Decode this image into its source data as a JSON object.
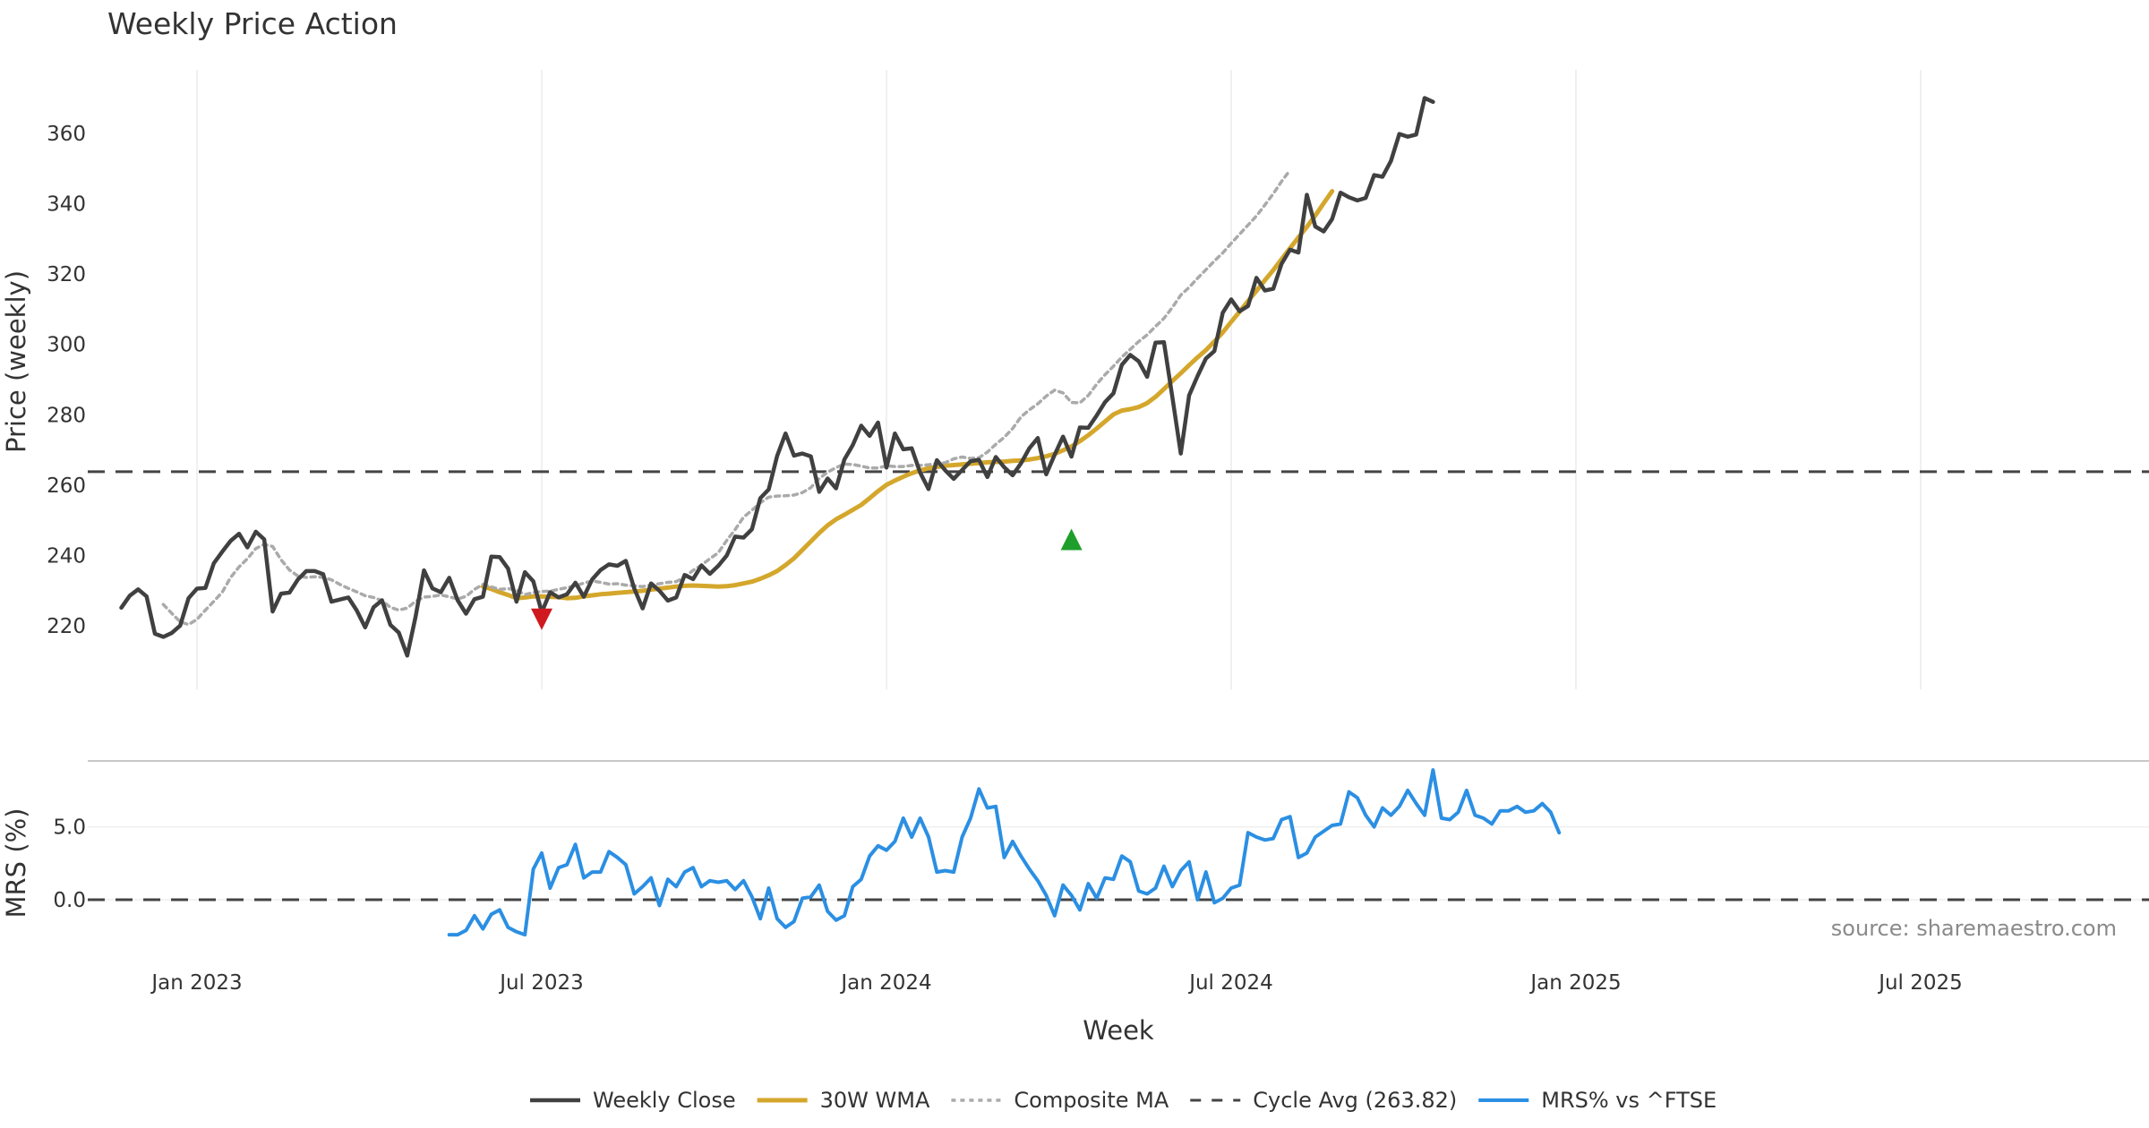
{
  "chart_data": {
    "type": "line",
    "title": "Weekly Price Action",
    "source": "source: sharemaestro.com",
    "x_tick_labels": [
      "Jan 2023",
      "Jul 2023",
      "Jan 2024",
      "Jul 2024",
      "Jan 2025",
      "Jul 2025"
    ],
    "x_tick_weeks": [
      9,
      50,
      91,
      132,
      173,
      214
    ],
    "price_panel": {
      "ylabel": "Price (weekly)",
      "ylim": [
        202,
        378
      ],
      "yticks": [
        220,
        240,
        260,
        280,
        300,
        320,
        340,
        360
      ],
      "cycle_avg": 263.82
    },
    "mrs_panel": {
      "ylabel": "MRS (%)",
      "ylim": [
        -4.3,
        9.4
      ],
      "yticks": [
        0.0,
        5.0
      ],
      "ytick_labels": [
        "0.0",
        "5.0"
      ]
    },
    "series": [
      {
        "name": "Weekly Close",
        "color": "#404040",
        "panel": "price",
        "start_week": 0,
        "values": [
          225.2,
          228.6,
          230.4,
          228.4,
          217.8,
          216.9,
          218.0,
          220.1,
          227.9,
          230.6,
          230.8,
          237.8,
          241.1,
          244.2,
          246.2,
          242.3,
          246.8,
          244.6,
          224.1,
          229.2,
          229.5,
          233.2,
          235.6,
          235.6,
          234.7,
          226.9,
          227.5,
          228.1,
          224.4,
          219.6,
          225.3,
          227.3,
          220.3,
          218.1,
          211.6,
          222.6,
          235.8,
          230.7,
          229.6,
          233.7,
          227.3,
          223.5,
          227.6,
          228.3,
          239.7,
          239.6,
          236.3,
          226.9,
          235.3,
          232.7,
          223.9,
          229.6,
          228.1,
          229.0,
          232.3,
          228.3,
          233.2,
          235.9,
          237.5,
          237.1,
          238.5,
          230.7,
          225.0,
          232.1,
          230.0,
          227.2,
          228.1,
          234.5,
          233.3,
          237.2,
          234.8,
          237.1,
          240.0,
          245.4,
          245.1,
          247.5,
          256.3,
          258.8,
          268.3,
          274.7,
          268.4,
          269.0,
          268.2,
          258.1,
          261.9,
          259.1,
          267.3,
          271.4,
          276.9,
          274.0,
          277.8,
          265.0,
          274.7,
          270.2,
          270.5,
          263.6,
          258.9,
          267.1,
          264.2,
          261.8,
          264.3,
          266.8,
          267.2,
          262.3,
          268.0,
          265.1,
          262.8,
          266.2,
          270.5,
          273.4,
          263.1,
          268.6,
          273.8,
          268.1,
          276.4,
          276.3,
          279.8,
          283.6,
          286.1,
          294.2,
          297.0,
          295.2,
          290.8,
          300.5,
          300.6,
          285.0,
          269.0,
          285.5,
          291.0,
          296.0,
          298.1,
          309.0,
          312.8,
          309.4,
          310.9,
          318.9,
          315.3,
          315.8,
          322.9,
          326.9,
          326.1,
          342.5,
          333.5,
          332.1,
          335.6,
          343.1,
          341.8,
          340.9,
          341.6,
          348.1,
          347.6,
          352.1,
          359.8,
          359.0,
          359.6,
          370.0,
          368.9
        ]
      },
      {
        "name": "30W WMA",
        "color": "#D4A72C",
        "panel": "price",
        "start_week": 43,
        "values": [
          231.2,
          230.5,
          229.6,
          228.8,
          227.9,
          228.1,
          228.4,
          228.4,
          228.3,
          228.2,
          227.9,
          228.0,
          228.4,
          228.7,
          229.0,
          229.2,
          229.4,
          229.6,
          229.8,
          230.0,
          230.3,
          230.6,
          230.9,
          231.2,
          231.4,
          231.5,
          231.4,
          231.3,
          231.2,
          231.3,
          231.6,
          232.1,
          232.6,
          233.4,
          234.4,
          235.6,
          237.3,
          239.2,
          241.6,
          244.0,
          246.4,
          248.6,
          250.3,
          251.6,
          253.0,
          254.4,
          256.3,
          258.3,
          260.1,
          261.3,
          262.4,
          263.4,
          264.2,
          264.8,
          265.2,
          265.5,
          265.7,
          265.9,
          266.1,
          266.3,
          266.5,
          266.6,
          266.7,
          266.9,
          267.0,
          267.3,
          267.7,
          268.2,
          268.9,
          269.9,
          271.0,
          272.5,
          274.2,
          276.1,
          278.1,
          280.1,
          281.2,
          281.6,
          282.2,
          283.3,
          285.1,
          287.3,
          289.6,
          291.8,
          294.1,
          296.3,
          298.4,
          300.8,
          303.4,
          306.4,
          309.3,
          312.3,
          315.2,
          318.2,
          321.1,
          324.2,
          327.3,
          330.4,
          333.4,
          336.6,
          340.1,
          343.5
        ]
      },
      {
        "name": "Composite MA",
        "color": "#AAAAAA",
        "panel": "price",
        "start_week": 5,
        "values": [
          226.1,
          223.6,
          221.2,
          220.4,
          221.9,
          224.5,
          227.0,
          229.6,
          233.8,
          236.8,
          239.1,
          242.0,
          243.2,
          242.6,
          238.8,
          235.9,
          234.2,
          233.8,
          234.0,
          233.8,
          233.1,
          231.8,
          230.7,
          229.7,
          228.6,
          228.1,
          227.2,
          225.3,
          224.5,
          225.1,
          227.0,
          228.2,
          228.4,
          228.8,
          228.3,
          227.7,
          228.4,
          230.4,
          231.8,
          231.1,
          230.4,
          230.6,
          230.2,
          228.9,
          229.5,
          229.8,
          229.9,
          230.4,
          230.9,
          231.4,
          232.2,
          232.8,
          232.4,
          231.9,
          232.0,
          231.6,
          231.4,
          231.2,
          231.6,
          232.0,
          232.4,
          232.6,
          233.9,
          235.8,
          237.3,
          239.1,
          240.8,
          244.3,
          247.4,
          250.9,
          252.9,
          255.0,
          256.6,
          256.9,
          257.0,
          257.2,
          257.9,
          259.3,
          261.9,
          263.7,
          265.0,
          266.0,
          265.9,
          265.4,
          264.9,
          264.9,
          265.5,
          265.3,
          265.3,
          265.6,
          265.6,
          265.8,
          266.1,
          266.4,
          267.5,
          268.0,
          267.6,
          267.8,
          269.4,
          271.6,
          273.6,
          276.1,
          279.4,
          281.4,
          283.1,
          285.3,
          287.0,
          286.2,
          283.5,
          283.4,
          285.5,
          288.7,
          291.4,
          293.8,
          296.4,
          298.6,
          300.8,
          302.7,
          305.1,
          307.4,
          310.5,
          314.0,
          316.2,
          318.8,
          321.2,
          323.7,
          326.0,
          328.7,
          331.3,
          333.9,
          336.5,
          339.6,
          342.8,
          346.3,
          349.5
        ]
      },
      {
        "name": "Cycle Avg (263.82)",
        "color": "#444444",
        "panel": "price",
        "constant": 263.82
      },
      {
        "name": "MRS% vs ^FTSE",
        "color": "#2B8FE3",
        "panel": "mrs",
        "start_week": 39,
        "values": [
          -2.4,
          -2.4,
          -2.1,
          -1.1,
          -2.0,
          -1.0,
          -0.7,
          -1.9,
          -2.2,
          -2.4,
          2.1,
          3.2,
          0.8,
          2.2,
          2.4,
          3.8,
          1.5,
          1.9,
          1.9,
          3.3,
          2.9,
          2.4,
          0.4,
          0.9,
          1.5,
          -0.4,
          1.4,
          0.9,
          1.9,
          2.2,
          0.9,
          1.3,
          1.2,
          1.3,
          0.7,
          1.3,
          0.2,
          -1.3,
          0.8,
          -1.3,
          -1.9,
          -1.5,
          0.1,
          0.2,
          1.0,
          -0.8,
          -1.4,
          -1.1,
          0.9,
          1.4,
          3.0,
          3.7,
          3.4,
          4.0,
          5.6,
          4.3,
          5.6,
          4.3,
          1.9,
          2.0,
          1.9,
          4.3,
          5.6,
          7.6,
          6.3,
          6.4,
          2.9,
          4.0,
          3.0,
          2.1,
          1.3,
          0.3,
          -1.1,
          1.0,
          0.3,
          -0.7,
          1.1,
          0.1,
          1.5,
          1.4,
          3.0,
          2.6,
          0.6,
          0.4,
          0.8,
          2.3,
          0.9,
          2.0,
          2.6,
          0.0,
          1.9,
          -0.2,
          0.1,
          0.8,
          1.0,
          4.6,
          4.3,
          4.1,
          4.2,
          5.5,
          5.7,
          2.9,
          3.2,
          4.3,
          4.7,
          5.1,
          5.2,
          7.4,
          7.0,
          5.8,
          5.0,
          6.3,
          5.8,
          6.4,
          7.5,
          6.6,
          5.8,
          8.9,
          5.6,
          5.5,
          6.0,
          7.5,
          5.8,
          5.6,
          5.2,
          6.1,
          6.1,
          6.4,
          6.0,
          6.1,
          6.6,
          6.0,
          4.6
        ]
      },
      {
        "name": "MRS zero",
        "color": "#444444",
        "panel": "mrs",
        "constant": 0.0
      }
    ],
    "markers": [
      {
        "type": "sell",
        "week": 50,
        "value": 221.9,
        "color": "#D0191E"
      },
      {
        "type": "buy",
        "week": 113,
        "value": 244.6,
        "color": "#1E9E2A"
      }
    ],
    "legend": {
      "position": "bottom-center",
      "entries": [
        "Weekly Close",
        "30W WMA",
        "Composite MA",
        "Cycle Avg (263.82)",
        "MRS% vs ^FTSE"
      ]
    }
  }
}
